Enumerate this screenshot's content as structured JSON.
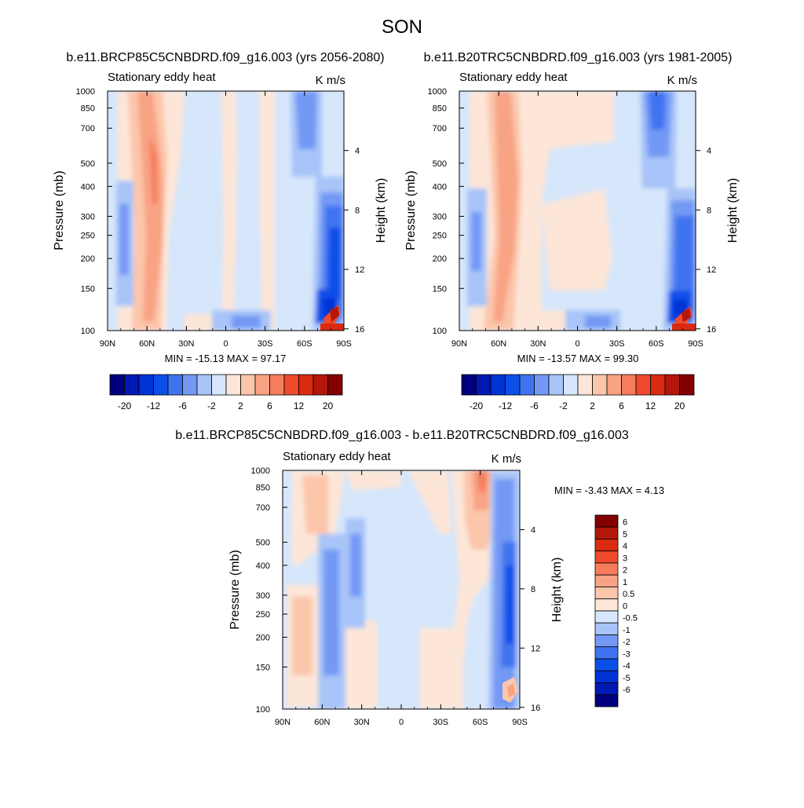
{
  "figure": {
    "title": "SON",
    "footer": ""
  },
  "colors": {
    "seq_main": [
      "#00007f",
      "#0019b3",
      "#0033d6",
      "#0a4fe8",
      "#3f73f0",
      "#7399f5",
      "#a8c4f8",
      "#d6e6fb",
      "#fde6d8",
      "#fcc6ab",
      "#f8a384",
      "#f57c5c",
      "#f04a2c",
      "#da2a12",
      "#b3170a",
      "#820000"
    ],
    "seq_diff": [
      "#00007f",
      "#0019b3",
      "#0033d6",
      "#0a4fe8",
      "#3f73f0",
      "#7399f5",
      "#a8c4f8",
      "#d6e6fb",
      "#fde6d8",
      "#fcc6ab",
      "#f8a384",
      "#f57c5c",
      "#f04a2c",
      "#da2a12",
      "#b3170a",
      "#820000"
    ]
  },
  "chart_data": [
    {
      "type": "heatmap",
      "title": "b.e11.BRCP85C5CNBDRD.f09_g16.003 (yrs 2056-2080)",
      "left_string": "Stationary eddy heat",
      "right_string": "K m/s",
      "ylabel": "Pressure (mb)",
      "ylabel_right": "Height (km)",
      "x_ticks": [
        "90N",
        "60N",
        "30N",
        "0",
        "30S",
        "60S",
        "90S"
      ],
      "y_ticks": [
        "100",
        "150",
        "200",
        "250",
        "300",
        "400",
        "500",
        "700",
        "850",
        "1000"
      ],
      "y_ticks_right": [
        "16",
        "12",
        "8",
        "4"
      ],
      "min_max_text": "MIN = -15.13  MAX =  97.17",
      "legend_labels": [
        "-20",
        "-12",
        "-6",
        "-2",
        "2",
        "6",
        "12",
        "20"
      ],
      "ylim": [
        1000,
        100
      ],
      "x_range": [
        90,
        -90
      ],
      "yscale": "log"
    },
    {
      "type": "heatmap",
      "title": "b.e11.B20TRC5CNBDRD.f09_g16.003 (yrs 1981-2005)",
      "left_string": "Stationary eddy heat",
      "right_string": "K m/s",
      "ylabel": "Pressure (mb)",
      "ylabel_right": "Height (km)",
      "x_ticks": [
        "90N",
        "60N",
        "30N",
        "0",
        "30S",
        "60S",
        "90S"
      ],
      "y_ticks": [
        "100",
        "150",
        "200",
        "250",
        "300",
        "400",
        "500",
        "700",
        "850",
        "1000"
      ],
      "y_ticks_right": [
        "16",
        "12",
        "8",
        "4"
      ],
      "min_max_text": "MIN = -13.57  MAX =  99.30",
      "legend_labels": [
        "-20",
        "-12",
        "-6",
        "-2",
        "2",
        "6",
        "12",
        "20"
      ],
      "ylim": [
        1000,
        100
      ],
      "x_range": [
        90,
        -90
      ],
      "yscale": "log"
    },
    {
      "type": "heatmap",
      "title": "b.e11.BRCP85C5CNBDRD.f09_g16.003 - b.e11.B20TRC5CNBDRD.f09_g16.003",
      "left_string": "Stationary eddy heat",
      "right_string": "K m/s",
      "ylabel": "Pressure (mb)",
      "ylabel_right": "Height (km)",
      "x_ticks": [
        "90N",
        "60N",
        "30N",
        "0",
        "30S",
        "60S",
        "90S"
      ],
      "y_ticks": [
        "100",
        "150",
        "200",
        "250",
        "300",
        "400",
        "500",
        "700",
        "850",
        "1000"
      ],
      "y_ticks_right": [
        "16",
        "12",
        "8",
        "4"
      ],
      "min_max_text": "MIN =  -3.43  MAX =   4.13",
      "legend_labels": [
        "6",
        "5",
        "4",
        "3",
        "2",
        "1",
        "0.5",
        "0",
        "-0.5",
        "-1",
        "-2",
        "-3",
        "-4",
        "-5",
        "-6"
      ],
      "ylim": [
        1000,
        100
      ],
      "x_range": [
        90,
        -90
      ],
      "yscale": "log"
    }
  ]
}
